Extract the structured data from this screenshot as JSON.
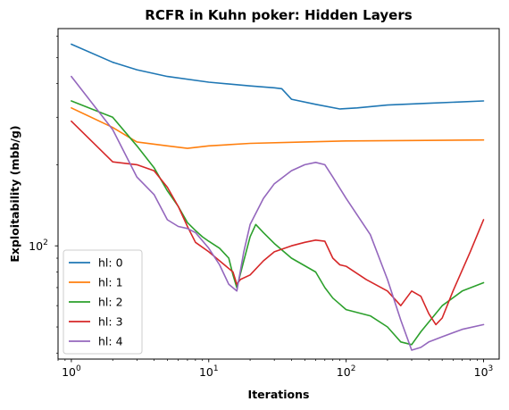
{
  "chart_data": {
    "type": "line",
    "title": "RCFR in Kuhn poker: Hidden Layers",
    "xlabel": "Iterations",
    "ylabel": "Exploitability (mbb/g)",
    "xscale": "log",
    "yscale": "log",
    "xlim": [
      0.8,
      1300
    ],
    "ylim": [
      38,
      640
    ],
    "x_ticks": [
      {
        "value": 1,
        "base": "10",
        "exp": "0"
      },
      {
        "value": 10,
        "base": "10",
        "exp": "1"
      },
      {
        "value": 100,
        "base": "10",
        "exp": "2"
      },
      {
        "value": 1000,
        "base": "10",
        "exp": "3"
      }
    ],
    "y_ticks": [
      {
        "value": 100,
        "base": "10",
        "exp": "2"
      }
    ],
    "grid": false,
    "legend_position": "lower-left",
    "series": [
      {
        "name": "hl: 0",
        "color": "#1f77b4",
        "points": [
          [
            1,
            560
          ],
          [
            2,
            480
          ],
          [
            3,
            450
          ],
          [
            5,
            425
          ],
          [
            10,
            405
          ],
          [
            20,
            392
          ],
          [
            30,
            386
          ],
          [
            34,
            383
          ],
          [
            40,
            350
          ],
          [
            60,
            335
          ],
          [
            90,
            322
          ],
          [
            120,
            325
          ],
          [
            200,
            333
          ],
          [
            400,
            338
          ],
          [
            1000,
            345
          ]
        ]
      },
      {
        "name": "hl: 1",
        "color": "#ff7f0e",
        "points": [
          [
            1,
            325
          ],
          [
            2,
            275
          ],
          [
            3,
            243
          ],
          [
            5,
            235
          ],
          [
            7,
            230
          ],
          [
            10,
            235
          ],
          [
            20,
            240
          ],
          [
            50,
            243
          ],
          [
            100,
            245
          ],
          [
            300,
            246
          ],
          [
            1000,
            247
          ]
        ]
      },
      {
        "name": "hl: 2",
        "color": "#2ca02c",
        "points": [
          [
            1,
            345
          ],
          [
            2,
            300
          ],
          [
            3,
            235
          ],
          [
            4,
            195
          ],
          [
            5,
            160
          ],
          [
            6,
            140
          ],
          [
            7,
            122
          ],
          [
            8,
            114
          ],
          [
            9,
            108
          ],
          [
            10,
            104
          ],
          [
            12,
            98
          ],
          [
            14,
            90
          ],
          [
            15,
            78
          ],
          [
            16,
            70
          ],
          [
            18,
            88
          ],
          [
            20,
            108
          ],
          [
            22,
            120
          ],
          [
            25,
            112
          ],
          [
            30,
            102
          ],
          [
            40,
            90
          ],
          [
            60,
            80
          ],
          [
            70,
            70
          ],
          [
            80,
            64
          ],
          [
            100,
            58
          ],
          [
            150,
            55
          ],
          [
            200,
            50
          ],
          [
            250,
            44
          ],
          [
            300,
            43
          ],
          [
            350,
            48
          ],
          [
            500,
            60
          ],
          [
            700,
            68
          ],
          [
            1000,
            73
          ]
        ]
      },
      {
        "name": "hl: 3",
        "color": "#d62728",
        "points": [
          [
            1,
            290
          ],
          [
            2,
            205
          ],
          [
            3,
            200
          ],
          [
            4,
            190
          ],
          [
            5,
            165
          ],
          [
            6,
            140
          ],
          [
            7,
            118
          ],
          [
            8,
            103
          ],
          [
            10,
            95
          ],
          [
            12,
            88
          ],
          [
            15,
            80
          ],
          [
            16,
            72
          ],
          [
            17,
            75
          ],
          [
            20,
            78
          ],
          [
            25,
            88
          ],
          [
            30,
            95
          ],
          [
            40,
            100
          ],
          [
            50,
            103
          ],
          [
            60,
            105
          ],
          [
            70,
            104
          ],
          [
            80,
            90
          ],
          [
            90,
            85
          ],
          [
            100,
            84
          ],
          [
            140,
            75
          ],
          [
            200,
            68
          ],
          [
            250,
            60
          ],
          [
            300,
            68
          ],
          [
            350,
            65
          ],
          [
            400,
            56
          ],
          [
            450,
            51
          ],
          [
            500,
            54
          ],
          [
            600,
            68
          ],
          [
            800,
            95
          ],
          [
            1000,
            125
          ]
        ]
      },
      {
        "name": "hl: 4",
        "color": "#9467bd",
        "points": [
          [
            1,
            425
          ],
          [
            2,
            270
          ],
          [
            3,
            180
          ],
          [
            4,
            155
          ],
          [
            5,
            125
          ],
          [
            6,
            118
          ],
          [
            7,
            116
          ],
          [
            8,
            112
          ],
          [
            10,
            98
          ],
          [
            12,
            85
          ],
          [
            14,
            72
          ],
          [
            16,
            68
          ],
          [
            18,
            95
          ],
          [
            20,
            120
          ],
          [
            25,
            150
          ],
          [
            30,
            170
          ],
          [
            40,
            190
          ],
          [
            50,
            200
          ],
          [
            60,
            204
          ],
          [
            70,
            200
          ],
          [
            80,
            180
          ],
          [
            100,
            150
          ],
          [
            150,
            110
          ],
          [
            200,
            75
          ],
          [
            250,
            53
          ],
          [
            300,
            41
          ],
          [
            350,
            42
          ],
          [
            400,
            44
          ],
          [
            500,
            46
          ],
          [
            700,
            49
          ],
          [
            1000,
            51
          ]
        ]
      }
    ]
  }
}
